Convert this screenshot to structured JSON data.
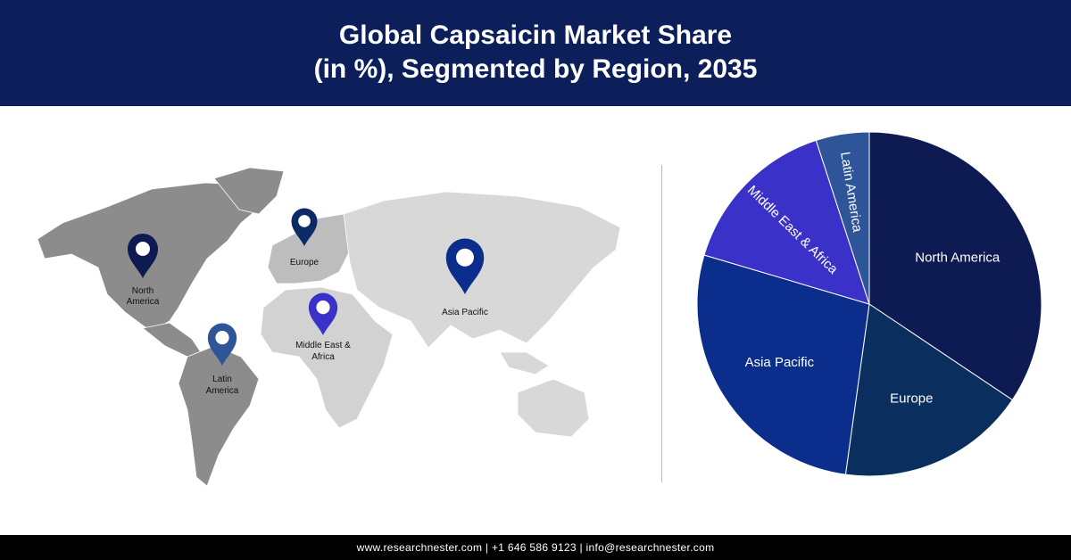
{
  "header": {
    "title_line1": "Global Capsaicin Market Share",
    "title_line2": "(in %), Segmented by Region, 2035"
  },
  "footer": {
    "text": "www.researchnester.com  | +1 646 586 9123 | info@researchnester.com"
  },
  "map": {
    "pins": [
      {
        "label_lines": [
          "North",
          "America"
        ],
        "color": "#0d1b52",
        "icon": "map-pin-icon"
      },
      {
        "label_lines": [
          "Europe"
        ],
        "color": "#0c2a66",
        "icon": "map-pin-icon"
      },
      {
        "label_lines": [
          "Asia Pacific"
        ],
        "color": "#0b2e8c",
        "icon": "map-pin-icon"
      },
      {
        "label_lines": [
          "Middle East &",
          "Africa"
        ],
        "color": "#3a32c8",
        "icon": "map-pin-icon"
      },
      {
        "label_lines": [
          "Latin",
          "America"
        ],
        "color": "#2e5597",
        "icon": "map-pin-icon"
      }
    ]
  },
  "chart_data": {
    "type": "pie",
    "title": "Global Capsaicin Market Share (in %), Segmented by Region, 2035",
    "categories": [
      "North America",
      "Europe",
      "Asia Pacific",
      "Middle East & Africa",
      "Latin America"
    ],
    "values": [
      34.4,
      17.8,
      27.4,
      15.4,
      5.0
    ],
    "colors": [
      "#0d1b52",
      "#0a2f5f",
      "#0b2e8c",
      "#3a32c8",
      "#2e5597"
    ],
    "start": "12 o'clock, clockwise"
  }
}
